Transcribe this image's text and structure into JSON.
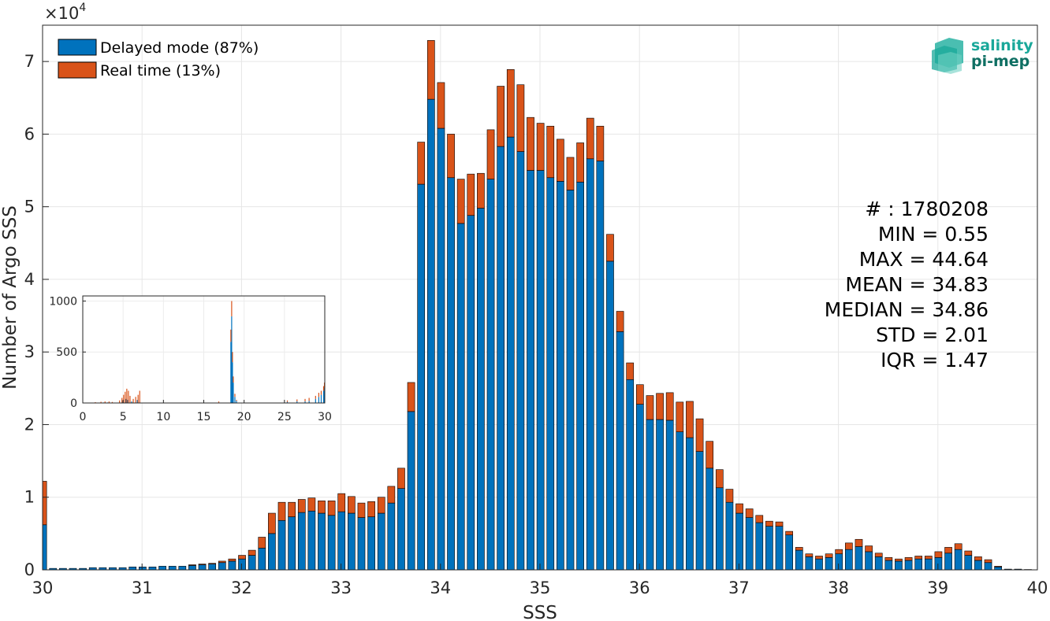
{
  "chart_data": {
    "type": "bar",
    "stacked": true,
    "xlabel": "SSS",
    "ylabel": "Number of Argo SSS",
    "y_multiplier": "×10^4",
    "y_multiplier_base": "×10",
    "y_multiplier_exp": "4",
    "xlim": [
      30,
      40
    ],
    "ylim": [
      0,
      7.5
    ],
    "x_ticks": [
      "30",
      "31",
      "32",
      "33",
      "34",
      "35",
      "36",
      "37",
      "38",
      "39",
      "40"
    ],
    "y_ticks": [
      "0",
      "1",
      "2",
      "3",
      "4",
      "5",
      "6",
      "7"
    ],
    "grid": true,
    "legend_position": "top-left",
    "bin_width": 0.1,
    "x": [
      30.0,
      30.1,
      30.2,
      30.3,
      30.4,
      30.5,
      30.6,
      30.7,
      30.8,
      30.9,
      31.0,
      31.1,
      31.2,
      31.3,
      31.4,
      31.5,
      31.6,
      31.7,
      31.8,
      31.9,
      32.0,
      32.1,
      32.2,
      32.3,
      32.4,
      32.5,
      32.6,
      32.7,
      32.8,
      32.9,
      33.0,
      33.1,
      33.2,
      33.3,
      33.4,
      33.5,
      33.6,
      33.7,
      33.8,
      33.9,
      34.0,
      34.1,
      34.2,
      34.3,
      34.4,
      34.5,
      34.6,
      34.7,
      34.8,
      34.9,
      35.0,
      35.1,
      35.2,
      35.3,
      35.4,
      35.5,
      35.6,
      35.7,
      35.8,
      35.9,
      36.0,
      36.1,
      36.2,
      36.3,
      36.4,
      36.5,
      36.6,
      36.7,
      36.8,
      36.9,
      37.0,
      37.1,
      37.2,
      37.3,
      37.4,
      37.5,
      37.6,
      37.7,
      37.8,
      37.9,
      38.0,
      38.1,
      38.2,
      38.3,
      38.4,
      38.5,
      38.6,
      38.7,
      38.8,
      38.9,
      39.0,
      39.1,
      39.2,
      39.3,
      39.4,
      39.5,
      39.6,
      39.7,
      39.8,
      39.9
    ],
    "series": [
      {
        "name": "Delayed mode (87%)",
        "color": "#0072BD",
        "values": [
          0.62,
          0.02,
          0.02,
          0.02,
          0.02,
          0.03,
          0.03,
          0.03,
          0.03,
          0.04,
          0.04,
          0.04,
          0.05,
          0.05,
          0.05,
          0.06,
          0.07,
          0.08,
          0.1,
          0.12,
          0.15,
          0.2,
          0.3,
          0.5,
          0.68,
          0.73,
          0.79,
          0.81,
          0.78,
          0.75,
          0.8,
          0.78,
          0.72,
          0.73,
          0.78,
          0.92,
          1.12,
          2.18,
          5.31,
          6.48,
          6.08,
          5.4,
          4.77,
          4.88,
          4.98,
          5.38,
          5.83,
          5.96,
          5.76,
          5.5,
          5.5,
          5.4,
          5.35,
          5.23,
          5.34,
          5.66,
          5.63,
          4.25,
          3.28,
          2.62,
          2.28,
          2.07,
          2.07,
          2.06,
          1.9,
          1.82,
          1.63,
          1.4,
          1.13,
          0.93,
          0.78,
          0.72,
          0.65,
          0.6,
          0.6,
          0.48,
          0.27,
          0.18,
          0.15,
          0.17,
          0.22,
          0.28,
          0.32,
          0.25,
          0.18,
          0.13,
          0.12,
          0.13,
          0.15,
          0.15,
          0.17,
          0.23,
          0.28,
          0.2,
          0.13,
          0.1,
          0.04,
          0.01,
          0.01,
          0.005
        ]
      },
      {
        "name": "Real time (13%)",
        "color": "#D95319",
        "values": [
          0.6,
          0.0,
          0.0,
          0.0,
          0.0,
          0.0,
          0.0,
          0.0,
          0.0,
          0.0,
          0.0,
          0.0,
          0.0,
          0.0,
          0.0,
          0.01,
          0.01,
          0.01,
          0.02,
          0.03,
          0.05,
          0.07,
          0.15,
          0.28,
          0.25,
          0.2,
          0.18,
          0.18,
          0.17,
          0.2,
          0.25,
          0.23,
          0.2,
          0.21,
          0.22,
          0.23,
          0.28,
          0.4,
          0.58,
          0.81,
          0.63,
          0.6,
          0.61,
          0.57,
          0.48,
          0.68,
          0.83,
          0.93,
          0.92,
          0.73,
          0.65,
          0.71,
          0.58,
          0.45,
          0.54,
          0.56,
          0.48,
          0.37,
          0.28,
          0.23,
          0.27,
          0.33,
          0.36,
          0.38,
          0.41,
          0.5,
          0.45,
          0.37,
          0.25,
          0.18,
          0.13,
          0.12,
          0.1,
          0.07,
          0.06,
          0.05,
          0.04,
          0.04,
          0.04,
          0.05,
          0.06,
          0.09,
          0.1,
          0.08,
          0.05,
          0.04,
          0.03,
          0.04,
          0.04,
          0.04,
          0.08,
          0.08,
          0.08,
          0.06,
          0.05,
          0.04,
          0.01,
          0.0,
          0.0,
          0.0
        ]
      }
    ],
    "stats": [
      "# : 1780208",
      "MIN = 0.55",
      "MAX =  44.64",
      "MEAN = 34.83",
      "MEDIAN = 34.86",
      "STD = 2.01",
      "IQR = 1.47"
    ],
    "inset": {
      "type": "bar",
      "stacked": true,
      "xlim": [
        0,
        30
      ],
      "ylim": [
        0,
        1050
      ],
      "x_ticks": [
        "0",
        "5",
        "10",
        "15",
        "20",
        "25",
        "30"
      ],
      "y_ticks": [
        "0",
        "500",
        "1000"
      ],
      "bin_width": 0.1,
      "series": [
        {
          "name": "Delayed mode",
          "color": "#0072BD",
          "points": [
            [
              2.5,
              5
            ],
            [
              3.0,
              5
            ],
            [
              4.9,
              20
            ],
            [
              5.3,
              40
            ],
            [
              5.5,
              30
            ],
            [
              6.0,
              15
            ],
            [
              6.7,
              30
            ],
            [
              16.8,
              5
            ],
            [
              18.3,
              600
            ],
            [
              18.4,
              850
            ],
            [
              18.5,
              400
            ],
            [
              18.6,
              200
            ],
            [
              18.8,
              60
            ],
            [
              19.0,
              20
            ],
            [
              25.3,
              10
            ],
            [
              26.5,
              15
            ],
            [
              27.5,
              15
            ],
            [
              28.0,
              20
            ],
            [
              28.8,
              40
            ],
            [
              29.2,
              60
            ],
            [
              29.5,
              80
            ],
            [
              29.8,
              120
            ],
            [
              29.9,
              150
            ]
          ]
        },
        {
          "name": "Real time",
          "color": "#D95319",
          "points": [
            [
              1.5,
              8
            ],
            [
              2.2,
              12
            ],
            [
              2.7,
              15
            ],
            [
              3.2,
              15
            ],
            [
              3.6,
              10
            ],
            [
              4.5,
              25
            ],
            [
              4.8,
              50
            ],
            [
              5.0,
              80
            ],
            [
              5.2,
              110
            ],
            [
              5.4,
              140
            ],
            [
              5.6,
              120
            ],
            [
              5.8,
              70
            ],
            [
              6.2,
              40
            ],
            [
              6.5,
              60
            ],
            [
              6.8,
              80
            ],
            [
              7.0,
              120
            ],
            [
              16.8,
              10
            ],
            [
              18.3,
              120
            ],
            [
              18.4,
              150
            ],
            [
              18.5,
              100
            ],
            [
              18.6,
              60
            ],
            [
              18.8,
              30
            ],
            [
              19.0,
              10
            ],
            [
              25.3,
              15
            ],
            [
              26.5,
              20
            ],
            [
              27.5,
              25
            ],
            [
              28.0,
              30
            ],
            [
              28.8,
              30
            ],
            [
              29.2,
              40
            ],
            [
              29.5,
              40
            ],
            [
              29.8,
              45
            ],
            [
              29.9,
              50
            ]
          ]
        }
      ]
    }
  },
  "logo": {
    "line1": "salinity",
    "line2": "pi-mep",
    "color_primary": "#1aa89a",
    "color_secondary": "#0e6f63"
  }
}
